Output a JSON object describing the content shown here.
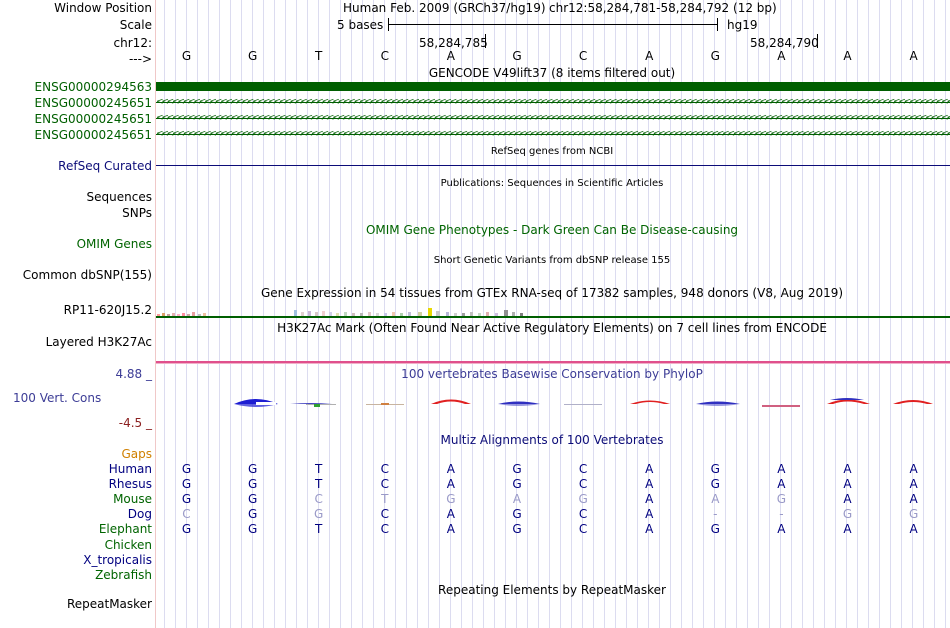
{
  "header": {
    "window_position_label": "Window Position",
    "scale_label": "Scale",
    "chrom_label": "chr12:",
    "strand_label": "--->",
    "assembly_text": "Human Feb. 2009 (GRCh37/hg19)",
    "position_text": "chr12:58,284,781-58,284,792 (12 bp)",
    "scale_text": "5 bases",
    "scale_db": "hg19",
    "coord_1": "58,284,785",
    "coord_2": "58,284,790"
  },
  "sequence": [
    "G",
    "G",
    "T",
    "C",
    "A",
    "G",
    "C",
    "A",
    "G",
    "A",
    "A",
    "A"
  ],
  "gencode": {
    "title": "GENCODE V49lift37 (8 items filtered out)",
    "items": [
      {
        "name": "ENSG00000294563",
        "strand": "block"
      },
      {
        "name": "ENSG00000245651",
        "strand": "minus"
      },
      {
        "name": "ENSG00000245651",
        "strand": "minus"
      },
      {
        "name": "ENSG00000245651",
        "strand": "minus"
      }
    ],
    "chevrons": "<<<<<<<<<<<<<<<<<<<<<<<<<<<<<<<<<<<<<<<<<<<<<<<<<<<<<<<<<<<<<<<<<<<<<<<<<<<<<<<<<<<<<<<<<<<<<<<<<<<<<<<<<<<<<<<<<<<<<<<<<<<<<<<<<<<<<<<<<<<<<<<<<<<<<<<<<<<<<<<<<<<<<<<<<<<<<<<"
  },
  "refseq": {
    "title": "RefSeq genes from NCBI",
    "label": "RefSeq Curated"
  },
  "publications": {
    "title": "Publications: Sequences in Scientific Articles",
    "label_sequences": "Sequences",
    "label_snps": "SNPs"
  },
  "omim": {
    "title": "OMIM Gene Phenotypes - Dark Green Can Be Disease-causing",
    "label": "OMIM Genes"
  },
  "dbsnp": {
    "title": "Short Genetic Variants from dbSNP release 155",
    "label": "Common dbSNP(155)"
  },
  "gtex": {
    "title": "Gene Expression in 54 tissues from GTEx RNA-seq of 17382 samples, 948 donors (V8, Aug 2019)",
    "label": "RP11-620J15.2"
  },
  "h3k27ac": {
    "title": "H3K27Ac Mark (Often Found Near Active Regulatory Elements) on 7 cell lines from ENCODE",
    "label": "Layered H3K27Ac"
  },
  "conservation": {
    "title": "100 vertebrates Basewise Conservation by PhyloP",
    "label": "100 Vert. Cons",
    "max_label": "4.88 _",
    "min_label": "-4.5 _"
  },
  "multiz": {
    "title": "Multiz Alignments of 100 Vertebrates",
    "gaps_label": "Gaps",
    "species": [
      {
        "name": "Human",
        "color": "#000080",
        "bases": [
          "G",
          "G",
          "T",
          "C",
          "A",
          "G",
          "C",
          "A",
          "G",
          "A",
          "A",
          "A"
        ],
        "dim": [
          0,
          0,
          0,
          0,
          0,
          0,
          0,
          0,
          0,
          0,
          0,
          0
        ]
      },
      {
        "name": "Rhesus",
        "color": "#000080",
        "bases": [
          "G",
          "G",
          "T",
          "C",
          "A",
          "G",
          "C",
          "A",
          "G",
          "A",
          "A",
          "A"
        ],
        "dim": [
          0,
          0,
          0,
          0,
          0,
          0,
          0,
          0,
          0,
          0,
          0,
          0
        ]
      },
      {
        "name": "Mouse",
        "color": "#006400",
        "bases": [
          "G",
          "G",
          "C",
          "T",
          "G",
          "A",
          "G",
          "A",
          "A",
          "G",
          "A",
          "A"
        ],
        "dim": [
          0,
          0,
          1,
          1,
          1,
          1,
          1,
          0,
          1,
          1,
          0,
          0
        ]
      },
      {
        "name": "Dog",
        "color": "#000080",
        "bases": [
          "C",
          "G",
          "G",
          "C",
          "A",
          "G",
          "C",
          "A",
          "-",
          "-",
          "G",
          "G"
        ],
        "dim": [
          1,
          0,
          1,
          0,
          0,
          0,
          0,
          0,
          1,
          1,
          1,
          1
        ]
      },
      {
        "name": "Elephant",
        "color": "#006400",
        "bases": [
          "G",
          "G",
          "T",
          "C",
          "A",
          "G",
          "C",
          "A",
          "G",
          "A",
          "A",
          "A"
        ],
        "dim": [
          0,
          0,
          0,
          0,
          0,
          0,
          0,
          0,
          0,
          0,
          0,
          0
        ]
      },
      {
        "name": "Chicken",
        "color": "#006400",
        "bases": [],
        "dim": []
      },
      {
        "name": "X_tropicalis",
        "color": "#000080",
        "bases": [],
        "dim": []
      },
      {
        "name": "Zebrafish",
        "color": "#006400",
        "bases": [],
        "dim": []
      }
    ]
  },
  "repeatmasker": {
    "title": "Repeating Elements by RepeatMasker",
    "label": "RepeatMasker"
  },
  "colors": {
    "gene_green": "#005f00",
    "refseq_blue": "#0c0c78",
    "cons_blue": "#3c3c96",
    "gaps_orange": "#d08000",
    "neg_red": "#8b2020",
    "dim_base": "#9a9ac8",
    "grid": "#dcdcf0"
  }
}
